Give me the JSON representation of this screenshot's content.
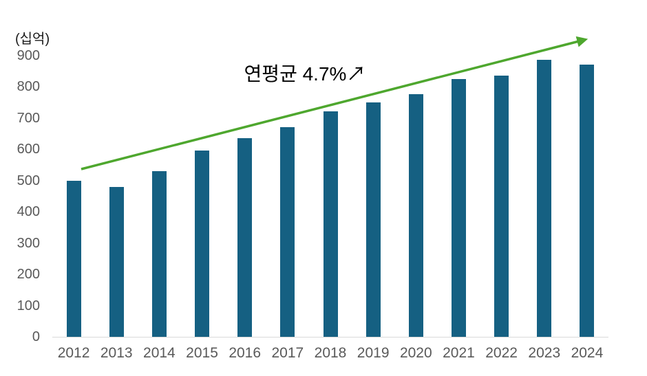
{
  "chart_data": {
    "type": "bar",
    "title": "",
    "unit_label": "(십억)",
    "annotation": "연평균 4.7%↗",
    "categories": [
      "2012",
      "2013",
      "2014",
      "2015",
      "2016",
      "2017",
      "2018",
      "2019",
      "2020",
      "2021",
      "2022",
      "2023",
      "2024"
    ],
    "values": [
      500,
      480,
      530,
      595,
      635,
      670,
      720,
      750,
      775,
      825,
      835,
      885,
      870
    ],
    "xlabel": "",
    "ylabel": "(십억)",
    "ylim": [
      0,
      900
    ],
    "yticks": [
      0,
      100,
      200,
      300,
      400,
      500,
      600,
      700,
      800,
      900
    ],
    "grid": "off",
    "legend": "none",
    "trend_line": {
      "label": "연평균 4.7%↗",
      "cagr_percent": 4.7,
      "style": "arrow"
    },
    "colors": {
      "bar": "#156082",
      "trend_arrow": "#4EA72E",
      "axis_line": "#D9D9D9",
      "tick_labels": "#595959",
      "annotation_text": "#000000",
      "background": "#FFFFFF"
    }
  }
}
